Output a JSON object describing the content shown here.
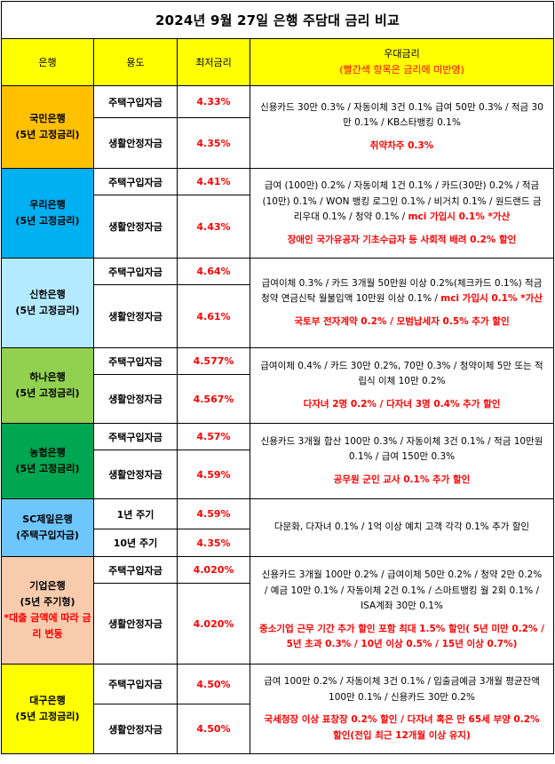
{
  "title": "2024년 9월 27일 은행 주담대 금리 비교",
  "header": {
    "bank": "은행",
    "usage": "용도",
    "lowest_rate": "최저금리",
    "benefit": "우대금리",
    "benefit_note": "(빨간색 항목은 금리에 미반영)"
  },
  "banks": [
    {
      "name": "국민은행",
      "sub": "(5년 고정금리)",
      "color": "#ffc000",
      "rows": [
        {
          "usage": "주택구입자금",
          "rate": "4.33%"
        },
        {
          "usage": "생활안정자금",
          "rate": "4.35%"
        }
      ],
      "benefit_black": "신용카드 30만 0.3% / 자동이체 3건 0.1% 급여 50만 0.3% / 적금 30만 0.1% / KB스타뱅킹 0.1%",
      "benefit_red": "취약차주 0.3%"
    },
    {
      "name": "우리은행",
      "sub": "(5년 고정금리)",
      "color": "#00b0f0",
      "rows": [
        {
          "usage": "주택구입자금",
          "rate": "4.41%"
        },
        {
          "usage": "생활안정자금",
          "rate": "4.43%"
        }
      ],
      "benefit_black": "급여 (100만) 0.2% / 자동이체 1건 0.1% / 카드(30만) 0.2% / 적금(10만) 0.1% / WON 뱅킹 로그인 0.1% / 비거치 0.1% / 원드랜드 금리우대 0.1% / 청약 0.1% / ",
      "benefit_inline_red": "mci 가입시 0.1% *가산",
      "benefit_red": "장애인 국가유공자 기초수급자 등 사회적 배려 0.2% 할인"
    },
    {
      "name": "신한은행",
      "sub": "(5년 고정금리)",
      "color": "#b4eafe",
      "rows": [
        {
          "usage": "주택구입자금",
          "rate": "4.64%"
        },
        {
          "usage": "생활안정자금",
          "rate": "4.61%"
        }
      ],
      "benefit_black": "급여이체 0.3% / 카드 3개월 50만원 이상 0.2%(체크카드 0.1%) 적금 청약 연금신탁 월불입액 10만원 이상 0.1% / ",
      "benefit_inline_red": "mci 가입시 0.1% *가산",
      "benefit_red": "국토부 전자계약 0.2% / 모범납세자 0.5% 추가 할인"
    },
    {
      "name": "하나은행",
      "sub": "(5년 고정금리)",
      "color": "#92d050",
      "rows": [
        {
          "usage": "주택구입자금",
          "rate": "4.577%"
        },
        {
          "usage": "생활안정자금",
          "rate": "4.567%"
        }
      ],
      "benefit_black": "급여이체 0.4% / 카드 30만 0.2%, 70만 0.3% / 청약이체 5만 또는 적립식 이체 10만 0.2%",
      "benefit_red": "다자녀 2명 0.2% / 다자녀 3명 0.4% 추가 할인"
    },
    {
      "name": "농협은행",
      "sub": "(5년 고정금리)",
      "color": "#00a651",
      "rows": [
        {
          "usage": "주택구입자금",
          "rate": "4.57%"
        },
        {
          "usage": "생활안정자금",
          "rate": "4.59%"
        }
      ],
      "benefit_black": "신용카드 3개월 합산 100만 0.3% / 자동이체 3건 0.1% / 적금 10만원 0.1% / 급여 150만 0.3%",
      "benefit_red": "공무원 군인 교사 0.1% 추가 할인"
    },
    {
      "name": "SC제일은행",
      "sub": "(주택구입자금)",
      "color": "#6ec6ff",
      "rows": [
        {
          "usage": "1년 주기",
          "rate": "4.59%"
        },
        {
          "usage": "10년 주기",
          "rate": "4.35%"
        }
      ],
      "benefit_black": "다문화, 다자녀 0.1% / 1억 이상 예치 고객 각각 0.1% 추가 할인",
      "benefit_red": ""
    },
    {
      "name": "기업은행",
      "sub": "(5년 주기형)",
      "sub2": "*대출 금액에 따라 금리 변동",
      "color": "#f8cbad",
      "rows": [
        {
          "usage": "주택구입자금",
          "rate": "4.020%"
        },
        {
          "usage": "생활안정자금",
          "rate": "4.020%"
        }
      ],
      "benefit_black": "신용카드 3개월 100만 0.2% / 급여이체 50만 0.2% / 청약 2만 0.2% / 예금 10만 0.1% / 자동이체 2건 0.1% / 스마트뱅킹 월 2회 0.1% / ISA계좌 30만 0.1%",
      "benefit_red": "중소기업 근무 기간 추가 할인 포함 최대 1.5% 할인( 5년 미만 0.2% / 5년 초과 0.3% / 10년 이상 0.5% / 15년 이상 0.7%)"
    },
    {
      "name": "대구은행",
      "sub": "(5년 고정금리)",
      "color": "#ffff00",
      "rows": [
        {
          "usage": "주택구입자금",
          "rate": "4.50%"
        },
        {
          "usage": "생활안정자금",
          "rate": "4.50%"
        }
      ],
      "benefit_black": "급여 100만 0.2% / 자동이체 3건 0.1% / 입출금예금 3개월 평균잔액 100만 0.1% / 신용카드 30만 0.2%",
      "benefit_red": "국세청장 이상 표창장 0.2% 할인 / 다자녀 혹은 만 65세 부양 0.2% 할인(전입 최근 12개월 이상 유지)"
    }
  ]
}
